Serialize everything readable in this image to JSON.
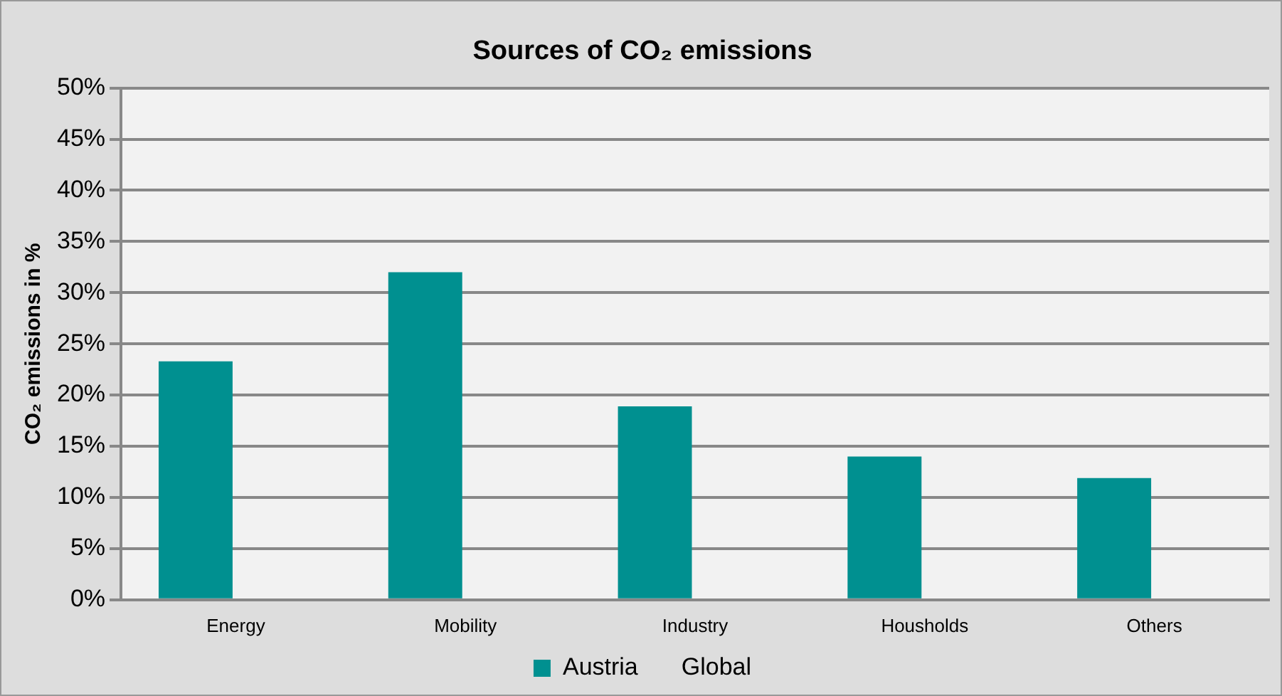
{
  "chart_data": {
    "type": "bar",
    "title": "Sources of CO₂ emissions",
    "ylabel": "CO₂ emissions in %",
    "categories": [
      "Energy",
      "Mobility",
      "Industry",
      "Housholds",
      "Others"
    ],
    "series": [
      {
        "name": "Austria",
        "color": "#009090",
        "values": [
          23.3,
          32.0,
          18.9,
          14.0,
          11.9
        ]
      },
      {
        "name": "Global",
        "values": [
          null,
          null,
          null,
          null,
          null
        ]
      }
    ],
    "ylim": [
      0,
      50
    ],
    "yticks": [
      {
        "value": 0,
        "label": "0%"
      },
      {
        "value": 5,
        "label": "5%"
      },
      {
        "value": 10,
        "label": "10%"
      },
      {
        "value": 15,
        "label": "15%"
      },
      {
        "value": 20,
        "label": "20%"
      },
      {
        "value": 25,
        "label": "25%"
      },
      {
        "value": 30,
        "label": "30%"
      },
      {
        "value": 35,
        "label": "35%"
      },
      {
        "value": 40,
        "label": "40%"
      },
      {
        "value": 45,
        "label": "45%"
      },
      {
        "value": 50,
        "label": "50%"
      }
    ],
    "grid": "y",
    "legend": "bottom"
  }
}
